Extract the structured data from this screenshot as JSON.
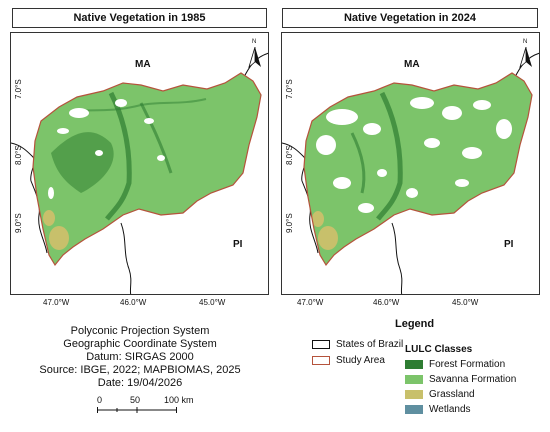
{
  "maps": [
    {
      "title": "Native Vegetation in 1985",
      "state_top": "MA",
      "state_bottom": "PI",
      "lat_labels": [
        "7.0°S",
        "8.0°S",
        "9.0°S"
      ],
      "lon_labels": [
        "47.0°W",
        "46.0°W",
        "45.0°W"
      ],
      "north": "N"
    },
    {
      "title": "Native Vegetation in 2024",
      "state_top": "MA",
      "state_bottom": "PI",
      "lat_labels": [
        "7.0°S",
        "8.0°S",
        "9.0°S"
      ],
      "lon_labels": [
        "47.0°W",
        "46.0°W",
        "45.0°W"
      ],
      "north": "N"
    }
  ],
  "info": {
    "projection": "Polyconic Projection System",
    "coord_system": "Geographic Coordinate System",
    "datum": "Datum: SIRGAS 2000",
    "source": "Source: IBGE, 2022; MAPBIOMAS, 2025",
    "date": "Date: 19/04/2026"
  },
  "scale": {
    "ticks": [
      "0",
      "50",
      "100 km"
    ]
  },
  "legend": {
    "title": "Legend",
    "boundaries": [
      {
        "label": "States of Brazil",
        "stroke": "#111111"
      },
      {
        "label": "Study Area",
        "stroke": "#b5533c"
      }
    ],
    "classes_title": "LULC Classes",
    "classes": [
      {
        "label": "Forest Formation",
        "color": "#2e7d32"
      },
      {
        "label": "Savanna Formation",
        "color": "#7cc46a"
      },
      {
        "label": "Grassland",
        "color": "#c8c06b"
      },
      {
        "label": "Wetlands",
        "color": "#5f8fa0"
      }
    ]
  }
}
